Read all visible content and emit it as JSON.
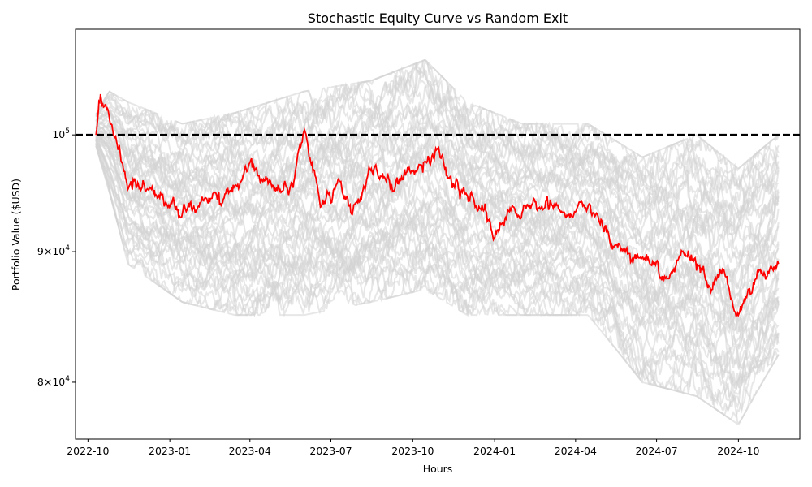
{
  "chart_data": {
    "type": "line",
    "title": "Stochastic Equity Curve vs Random Exit",
    "xlabel": "Hours",
    "ylabel": "Portfolio Value ($USD)",
    "yscale": "log",
    "ylim": [
      76000,
      110000
    ],
    "xlim": [
      "2022-09-17",
      "2024-12-09"
    ],
    "x_ticks": [
      "2022-10",
      "2023-01",
      "2023-04",
      "2023-07",
      "2023-10",
      "2024-01",
      "2024-04",
      "2024-07",
      "2024-10"
    ],
    "y_ticks": [
      {
        "value": 80000,
        "base": "8×10",
        "exp": "4"
      },
      {
        "value": 90000,
        "base": "9×10",
        "exp": "4"
      },
      {
        "value": 100000,
        "base": "10",
        "exp": "5"
      }
    ],
    "grid": false,
    "legend": "none",
    "reference_line": {
      "value": 100000,
      "style": "dashed",
      "color": "#000000"
    },
    "colors": {
      "highlight": "#ff0000",
      "simulations": "#d3d3d3"
    },
    "simulations": {
      "count": 50,
      "envelope": [
        {
          "x": "2022-10-10",
          "low": 99000,
          "high": 102000
        },
        {
          "x": "2022-10-25",
          "low": 95000,
          "high": 104000
        },
        {
          "x": "2022-11-15",
          "low": 89000,
          "high": 103000
        },
        {
          "x": "2023-01-15",
          "low": 86000,
          "high": 101000
        },
        {
          "x": "2023-03-15",
          "low": 85000,
          "high": 102000
        },
        {
          "x": "2023-06-01",
          "low": 85000,
          "high": 104000
        },
        {
          "x": "2023-08-15",
          "low": 86000,
          "high": 105000
        },
        {
          "x": "2023-10-15",
          "low": 87000,
          "high": 107000
        },
        {
          "x": "2023-12-01",
          "low": 85000,
          "high": 103000
        },
        {
          "x": "2024-02-01",
          "low": 85000,
          "high": 101000
        },
        {
          "x": "2024-04-15",
          "low": 85000,
          "high": 101000
        },
        {
          "x": "2024-06-15",
          "low": 80000,
          "high": 98000
        },
        {
          "x": "2024-08-15",
          "low": 79000,
          "high": 100000
        },
        {
          "x": "2024-10-01",
          "low": 77000,
          "high": 97000
        },
        {
          "x": "2024-11-15",
          "low": 82000,
          "high": 100000
        }
      ]
    },
    "highlight_series": {
      "name": "Random Exit",
      "points": [
        {
          "x": "2022-10-10",
          "y": 100000
        },
        {
          "x": "2022-10-15",
          "y": 103000
        },
        {
          "x": "2022-10-25",
          "y": 101500
        },
        {
          "x": "2022-11-05",
          "y": 99000
        },
        {
          "x": "2022-11-15",
          "y": 95000
        },
        {
          "x": "2022-12-01",
          "y": 96000
        },
        {
          "x": "2022-12-20",
          "y": 94500
        },
        {
          "x": "2023-01-15",
          "y": 93000
        },
        {
          "x": "2023-02-10",
          "y": 94500
        },
        {
          "x": "2023-03-01",
          "y": 94000
        },
        {
          "x": "2023-04-01",
          "y": 97000
        },
        {
          "x": "2023-04-20",
          "y": 95500
        },
        {
          "x": "2023-05-15",
          "y": 95000
        },
        {
          "x": "2023-06-01",
          "y": 100000
        },
        {
          "x": "2023-06-20",
          "y": 94500
        },
        {
          "x": "2023-07-10",
          "y": 95500
        },
        {
          "x": "2023-07-25",
          "y": 93500
        },
        {
          "x": "2023-08-15",
          "y": 96500
        },
        {
          "x": "2023-09-10",
          "y": 95500
        },
        {
          "x": "2023-10-15",
          "y": 98000
        },
        {
          "x": "2023-11-01",
          "y": 98500
        },
        {
          "x": "2023-11-15",
          "y": 95500
        },
        {
          "x": "2023-12-15",
          "y": 94000
        },
        {
          "x": "2024-01-01",
          "y": 91500
        },
        {
          "x": "2024-01-20",
          "y": 93000
        },
        {
          "x": "2024-02-15",
          "y": 94500
        },
        {
          "x": "2024-03-15",
          "y": 93000
        },
        {
          "x": "2024-04-15",
          "y": 93500
        },
        {
          "x": "2024-05-15",
          "y": 90500
        },
        {
          "x": "2024-06-15",
          "y": 89500
        },
        {
          "x": "2024-07-10",
          "y": 88000
        },
        {
          "x": "2024-08-01",
          "y": 90000
        },
        {
          "x": "2024-08-20",
          "y": 88500
        },
        {
          "x": "2024-09-01",
          "y": 87000
        },
        {
          "x": "2024-09-15",
          "y": 88500
        },
        {
          "x": "2024-10-01",
          "y": 85000
        },
        {
          "x": "2024-10-20",
          "y": 87500
        },
        {
          "x": "2024-11-10",
          "y": 88500
        },
        {
          "x": "2024-11-15",
          "y": 89000
        }
      ]
    }
  }
}
